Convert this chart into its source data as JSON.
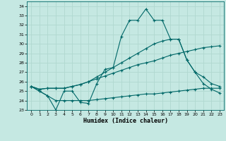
{
  "xlabel": "Humidex (Indice chaleur)",
  "bg_color": "#c5e8e2",
  "grid_color": "#b0d8d0",
  "line_color": "#006868",
  "xlim": [
    -0.5,
    23.5
  ],
  "ylim": [
    23,
    34.5
  ],
  "xticks": [
    0,
    1,
    2,
    3,
    4,
    5,
    6,
    7,
    8,
    9,
    10,
    11,
    12,
    13,
    14,
    15,
    16,
    17,
    18,
    19,
    20,
    21,
    22,
    23
  ],
  "yticks": [
    23,
    24,
    25,
    26,
    27,
    28,
    29,
    30,
    31,
    32,
    33,
    34
  ],
  "line1_x": [
    0,
    1,
    2,
    3,
    4,
    5,
    6,
    7,
    8,
    9,
    10,
    11,
    12,
    13,
    14,
    15,
    16,
    17,
    18,
    19,
    20,
    21,
    22,
    23
  ],
  "line1_y": [
    25.5,
    25.0,
    24.5,
    23.0,
    25.0,
    25.0,
    23.8,
    23.7,
    25.8,
    27.3,
    27.5,
    30.8,
    32.5,
    32.5,
    33.7,
    32.5,
    32.5,
    30.5,
    30.5,
    28.3,
    27.0,
    25.8,
    25.2,
    24.8
  ],
  "line2_x": [
    0,
    1,
    2,
    3,
    4,
    5,
    6,
    7,
    8,
    9,
    10,
    11,
    12,
    13,
    14,
    15,
    16,
    17,
    18,
    19,
    20,
    21,
    22,
    23
  ],
  "line2_y": [
    25.5,
    25.2,
    25.3,
    25.3,
    25.3,
    25.5,
    25.7,
    26.0,
    26.5,
    27.0,
    27.5,
    28.0,
    28.5,
    29.0,
    29.5,
    30.0,
    30.3,
    30.5,
    30.5,
    28.3,
    27.0,
    26.5,
    25.8,
    25.5
  ],
  "line3_x": [
    0,
    1,
    2,
    3,
    4,
    5,
    6,
    7,
    8,
    9,
    10,
    11,
    12,
    13,
    14,
    15,
    16,
    17,
    18,
    19,
    20,
    21,
    22,
    23
  ],
  "line3_y": [
    25.5,
    25.2,
    25.3,
    25.3,
    25.3,
    25.5,
    25.7,
    26.0,
    26.3,
    26.6,
    26.9,
    27.2,
    27.5,
    27.8,
    28.0,
    28.2,
    28.5,
    28.8,
    29.0,
    29.2,
    29.4,
    29.6,
    29.7,
    29.8
  ],
  "line4_x": [
    0,
    1,
    2,
    3,
    4,
    5,
    6,
    7,
    8,
    9,
    10,
    11,
    12,
    13,
    14,
    15,
    16,
    17,
    18,
    19,
    20,
    21,
    22,
    23
  ],
  "line4_y": [
    25.5,
    25.0,
    24.5,
    24.0,
    24.0,
    24.0,
    24.0,
    24.0,
    24.1,
    24.2,
    24.3,
    24.4,
    24.5,
    24.6,
    24.7,
    24.7,
    24.8,
    24.9,
    25.0,
    25.1,
    25.2,
    25.3,
    25.3,
    25.3
  ]
}
